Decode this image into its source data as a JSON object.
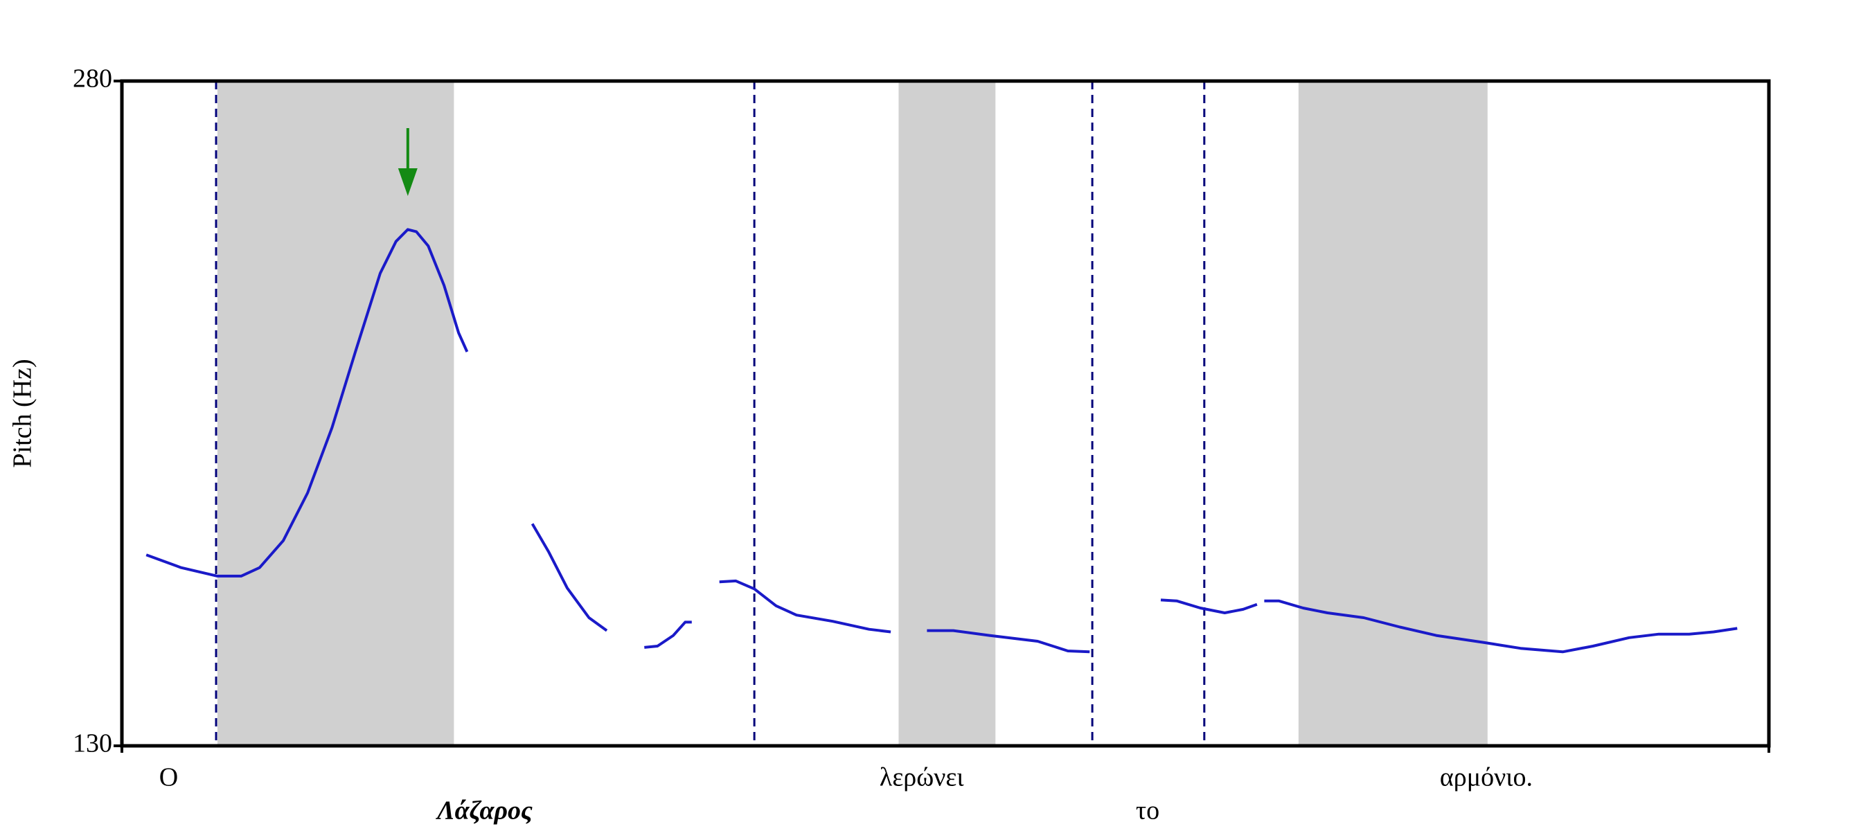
{
  "chart_data": {
    "type": "line",
    "ylabel": "Pitch (Hz)",
    "color": "#1a1ac8",
    "xlim": [
      0,
      2.5
    ],
    "ylim": [
      130,
      280
    ],
    "yticks": [
      130,
      280
    ],
    "grid": false,
    "stressed_intervals": [
      [
        0.145,
        0.504
      ],
      [
        1.179,
        1.326
      ],
      [
        1.786,
        2.073
      ]
    ],
    "stressed_color": "#d0d0d0",
    "boundaries": [
      0.143,
      0.96,
      1.473,
      1.643
    ],
    "boundary_color": "#00007a",
    "arrow_x": 0.434,
    "arrow_color": "#138a13",
    "words": [
      {
        "text": "Ο",
        "x": 0.071
      },
      {
        "text": "Λάζαρος",
        "x": 0.551,
        "emphasis": true
      },
      {
        "text": "λερώνει",
        "x": 1.214
      },
      {
        "text": "το",
        "x": 1.557
      },
      {
        "text": "αρμόνιο.",
        "x": 2.071
      }
    ],
    "x": [
      0.037,
      0.09,
      0.145,
      0.181,
      0.209,
      0.245,
      0.282,
      0.319,
      0.355,
      0.392,
      0.416,
      0.434,
      0.447,
      0.465,
      0.489,
      0.511,
      0.524,
      null,
      0.623,
      0.648,
      0.676,
      0.709,
      0.736,
      null,
      0.793,
      0.813,
      0.837,
      0.855,
      0.865,
      null,
      0.907,
      0.932,
      0.96,
      0.993,
      1.024,
      1.079,
      1.134,
      1.167,
      null,
      1.222,
      1.262,
      1.317,
      1.39,
      1.436,
      1.469,
      null,
      1.577,
      1.601,
      1.637,
      1.674,
      1.702,
      1.723,
      null,
      1.734,
      1.756,
      1.793,
      1.83,
      1.885,
      1.94,
      1.995,
      2.068,
      2.123,
      2.187,
      2.233,
      2.288,
      2.333,
      2.379,
      2.416,
      2.452
    ],
    "values": [
      173.1,
      170.2,
      168.3,
      168.3,
      170.2,
      176.3,
      187.1,
      201.8,
      219.2,
      236.6,
      243.8,
      246.5,
      246.0,
      242.8,
      233.9,
      223.2,
      218.9,
      null,
      180.1,
      173.7,
      165.6,
      158.9,
      156.0,
      null,
      152.2,
      152.5,
      154.9,
      157.9,
      157.9,
      null,
      167.0,
      167.2,
      165.4,
      161.6,
      159.5,
      158.1,
      156.3,
      155.7,
      null,
      156.0,
      156.0,
      154.9,
      153.6,
      151.4,
      151.2,
      null,
      162.9,
      162.7,
      161.1,
      160.0,
      160.8,
      161.9,
      null,
      162.7,
      162.7,
      161.1,
      160.0,
      158.9,
      156.8,
      154.9,
      153.3,
      152.0,
      151.2,
      152.5,
      154.4,
      155.2,
      155.2,
      155.7,
      156.5
    ]
  }
}
